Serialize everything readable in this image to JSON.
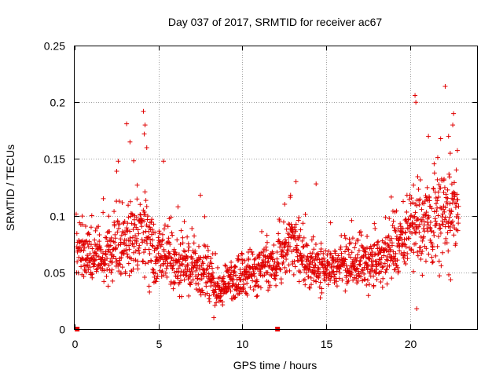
{
  "chart_data": {
    "type": "scatter",
    "title": "Day 037 of 2017, SRMTID for receiver ac67",
    "xlabel": "GPS time / hours",
    "ylabel": "SRMTID / TECUs",
    "xlim": [
      0,
      24
    ],
    "ylim": [
      0,
      0.25
    ],
    "x_ticks": [
      0,
      5,
      10,
      15,
      20
    ],
    "x_tick_labels": [
      "0",
      "5",
      "10",
      "15",
      "20"
    ],
    "y_ticks": [
      0,
      0.05,
      0.1,
      0.15,
      0.2,
      0.25
    ],
    "y_tick_labels": [
      "0",
      "0.05",
      "0.1",
      "0.15",
      "0.2",
      "0.25"
    ],
    "grid": true,
    "marker": "+",
    "color": "#e00000",
    "x_range_of_data": [
      0.1,
      22.9
    ],
    "zero_points": [
      {
        "x": 0.15,
        "y": 0
      },
      {
        "x": 12.1,
        "y": 0
      }
    ],
    "trend": [
      {
        "x": 0.2,
        "y": 0.07,
        "spread": 0.02
      },
      {
        "x": 1,
        "y": 0.065,
        "spread": 0.018
      },
      {
        "x": 2,
        "y": 0.065,
        "spread": 0.02
      },
      {
        "x": 3,
        "y": 0.08,
        "spread": 0.025
      },
      {
        "x": 4,
        "y": 0.085,
        "spread": 0.028
      },
      {
        "x": 5,
        "y": 0.065,
        "spread": 0.022
      },
      {
        "x": 6,
        "y": 0.058,
        "spread": 0.02
      },
      {
        "x": 7,
        "y": 0.055,
        "spread": 0.018
      },
      {
        "x": 8,
        "y": 0.048,
        "spread": 0.017
      },
      {
        "x": 8.5,
        "y": 0.035,
        "spread": 0.012
      },
      {
        "x": 9,
        "y": 0.04,
        "spread": 0.014
      },
      {
        "x": 10,
        "y": 0.048,
        "spread": 0.016
      },
      {
        "x": 11,
        "y": 0.052,
        "spread": 0.016
      },
      {
        "x": 12,
        "y": 0.06,
        "spread": 0.018
      },
      {
        "x": 13,
        "y": 0.075,
        "spread": 0.022
      },
      {
        "x": 14,
        "y": 0.055,
        "spread": 0.018
      },
      {
        "x": 15,
        "y": 0.05,
        "spread": 0.016
      },
      {
        "x": 16,
        "y": 0.055,
        "spread": 0.016
      },
      {
        "x": 17,
        "y": 0.06,
        "spread": 0.018
      },
      {
        "x": 18,
        "y": 0.058,
        "spread": 0.018
      },
      {
        "x": 19,
        "y": 0.07,
        "spread": 0.022
      },
      {
        "x": 20,
        "y": 0.085,
        "spread": 0.028
      },
      {
        "x": 21,
        "y": 0.09,
        "spread": 0.03
      },
      {
        "x": 22,
        "y": 0.1,
        "spread": 0.035
      },
      {
        "x": 22.9,
        "y": 0.11,
        "spread": 0.035
      }
    ],
    "notable_points": [
      {
        "x": 3.1,
        "y": 0.181
      },
      {
        "x": 3.3,
        "y": 0.165
      },
      {
        "x": 2.6,
        "y": 0.148
      },
      {
        "x": 4.1,
        "y": 0.192
      },
      {
        "x": 4.2,
        "y": 0.18
      },
      {
        "x": 4.15,
        "y": 0.172
      },
      {
        "x": 4.3,
        "y": 0.16
      },
      {
        "x": 5.3,
        "y": 0.148
      },
      {
        "x": 7.5,
        "y": 0.118
      },
      {
        "x": 8.3,
        "y": 0.01
      },
      {
        "x": 13.2,
        "y": 0.13
      },
      {
        "x": 14.4,
        "y": 0.128
      },
      {
        "x": 20.3,
        "y": 0.206
      },
      {
        "x": 20.35,
        "y": 0.2
      },
      {
        "x": 21.1,
        "y": 0.17
      },
      {
        "x": 22.1,
        "y": 0.214
      },
      {
        "x": 22.6,
        "y": 0.19
      },
      {
        "x": 22.55,
        "y": 0.18
      },
      {
        "x": 22.3,
        "y": 0.17
      },
      {
        "x": 22.4,
        "y": 0.155
      },
      {
        "x": 20.4,
        "y": 0.018
      }
    ]
  }
}
